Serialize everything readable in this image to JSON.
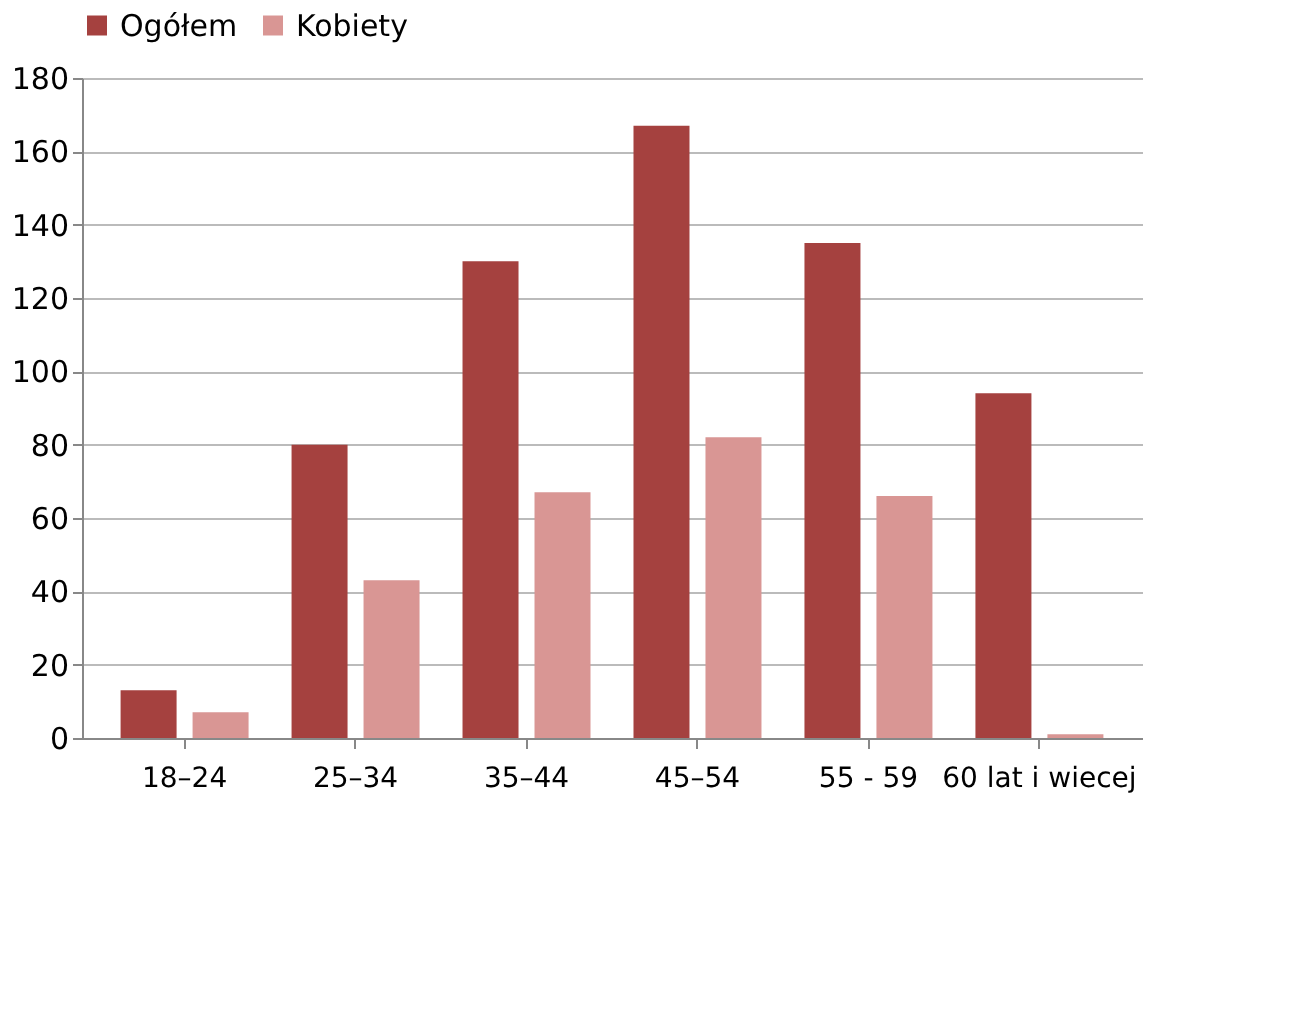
{
  "chart_data": {
    "type": "bar",
    "categories": [
      "18–24",
      "25–34",
      "35–44",
      "45–54",
      "55 - 59",
      "60 lat i wiecej"
    ],
    "series": [
      {
        "name": "Ogółem",
        "color": "#a5413f",
        "values": [
          13,
          80,
          130,
          167,
          135,
          94
        ]
      },
      {
        "name": "Kobiety",
        "color": "#d99694",
        "values": [
          7,
          43,
          67,
          82,
          66,
          1
        ]
      }
    ],
    "ylim": [
      0,
      180
    ],
    "yticks": [
      0,
      20,
      40,
      60,
      80,
      100,
      120,
      140,
      160,
      180
    ],
    "grid": "y",
    "legend": "top"
  }
}
